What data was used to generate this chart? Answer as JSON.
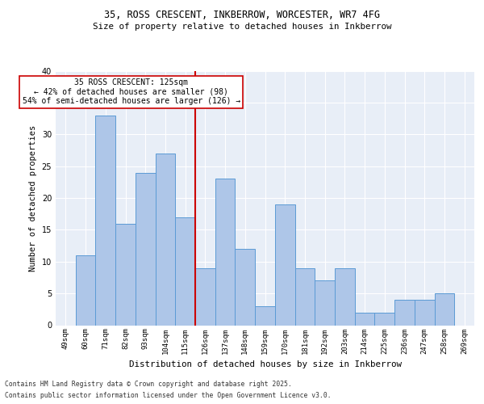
{
  "title_line1": "35, ROSS CRESCENT, INKBERROW, WORCESTER, WR7 4FG",
  "title_line2": "Size of property relative to detached houses in Inkberrow",
  "categories": [
    "49sqm",
    "60sqm",
    "71sqm",
    "82sqm",
    "93sqm",
    "104sqm",
    "115sqm",
    "126sqm",
    "137sqm",
    "148sqm",
    "159sqm",
    "170sqm",
    "181sqm",
    "192sqm",
    "203sqm",
    "214sqm",
    "225sqm",
    "236sqm",
    "247sqm",
    "258sqm",
    "269sqm"
  ],
  "values": [
    0,
    11,
    33,
    16,
    24,
    27,
    17,
    9,
    23,
    12,
    3,
    19,
    9,
    7,
    9,
    2,
    2,
    4,
    4,
    5,
    0
  ],
  "bar_color": "#aec6e8",
  "bar_edge_color": "#5b9bd5",
  "vline_color": "#cc0000",
  "annotation_text": "35 ROSS CRESCENT: 125sqm\n← 42% of detached houses are smaller (98)\n54% of semi-detached houses are larger (126) →",
  "annotation_box_color": "#ffffff",
  "annotation_box_edge_color": "#cc0000",
  "ylabel": "Number of detached properties",
  "xlabel": "Distribution of detached houses by size in Inkberrow",
  "ylim": [
    0,
    40
  ],
  "yticks": [
    0,
    5,
    10,
    15,
    20,
    25,
    30,
    35,
    40
  ],
  "background_color": "#e8eef7",
  "grid_color": "#ffffff",
  "footer_line1": "Contains HM Land Registry data © Crown copyright and database right 2025.",
  "footer_line2": "Contains public sector information licensed under the Open Government Licence v3.0."
}
